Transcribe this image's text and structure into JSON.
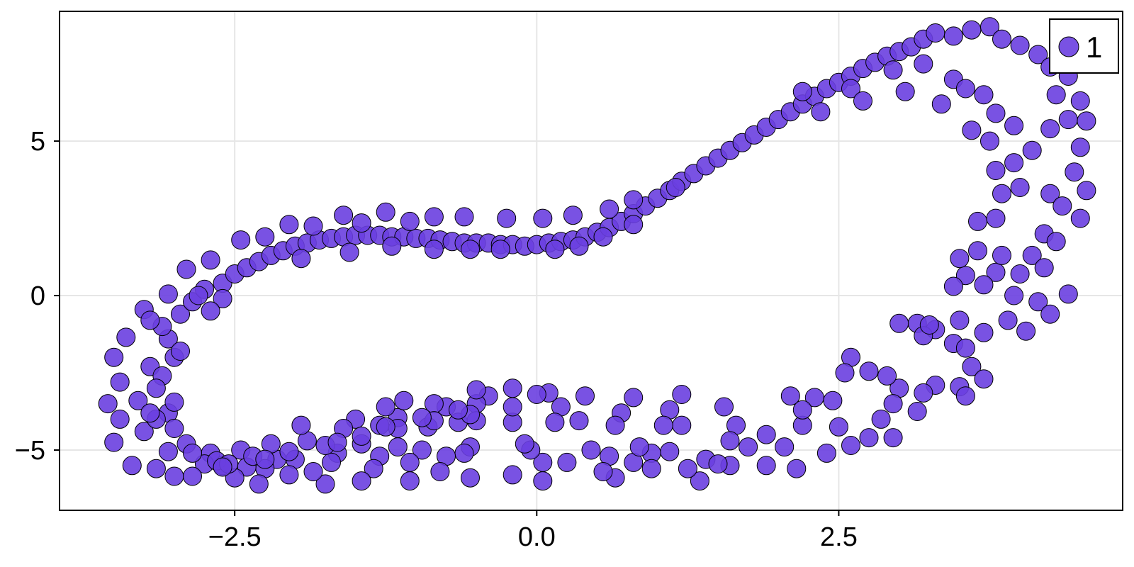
{
  "chart_data": {
    "type": "scatter",
    "title": "",
    "xlabel": "",
    "ylabel": "",
    "xlim": [
      -3.95,
      4.85
    ],
    "ylim": [
      -6.95,
      9.2
    ],
    "x_ticks": [
      -2.5,
      0.0,
      2.5
    ],
    "x_tick_labels": [
      "−2.5",
      "0.0",
      "2.5"
    ],
    "y_ticks": [
      -5,
      0,
      5
    ],
    "y_tick_labels": [
      "−5",
      "0",
      "5"
    ],
    "grid": true,
    "legend_position": "top-right",
    "marker_color": "#6a3fe0",
    "marker_edge_color": "#000000",
    "series": [
      {
        "name": "1",
        "points": [
          [
            -3.55,
            -3.5
          ],
          [
            -3.45,
            -4.0
          ],
          [
            -3.5,
            -4.75
          ],
          [
            -3.35,
            -5.5
          ],
          [
            -3.15,
            -5.6
          ],
          [
            -3.0,
            -5.85
          ],
          [
            -3.4,
            -1.35
          ],
          [
            -3.25,
            -0.45
          ],
          [
            -3.05,
            0.05
          ],
          [
            -2.9,
            0.85
          ],
          [
            -3.5,
            -2.0
          ],
          [
            -3.45,
            -2.8
          ],
          [
            -3.3,
            -3.4
          ],
          [
            -3.2,
            -2.3
          ],
          [
            -3.25,
            -4.4
          ],
          [
            -3.05,
            -3.8
          ],
          [
            -3.1,
            -2.6
          ],
          [
            -3.05,
            -1.4
          ],
          [
            -3.1,
            -1.0
          ],
          [
            -3.0,
            -2.0
          ],
          [
            -2.95,
            -0.6
          ],
          [
            -2.85,
            -0.2
          ],
          [
            -2.75,
            0.2
          ],
          [
            -2.6,
            0.4
          ],
          [
            -2.5,
            0.7
          ],
          [
            -2.4,
            0.9
          ],
          [
            -2.3,
            1.1
          ],
          [
            -2.2,
            1.3
          ],
          [
            -2.1,
            1.45
          ],
          [
            -2.0,
            1.6
          ],
          [
            -1.9,
            1.7
          ],
          [
            -1.8,
            1.8
          ],
          [
            -1.7,
            1.85
          ],
          [
            -1.6,
            1.9
          ],
          [
            -1.5,
            1.95
          ],
          [
            -1.4,
            1.95
          ],
          [
            -1.3,
            1.95
          ],
          [
            -1.2,
            1.9
          ],
          [
            -1.1,
            1.9
          ],
          [
            -1.0,
            1.85
          ],
          [
            -0.9,
            1.85
          ],
          [
            -0.8,
            1.8
          ],
          [
            -0.7,
            1.75
          ],
          [
            -0.6,
            1.7
          ],
          [
            -0.5,
            1.7
          ],
          [
            -0.4,
            1.7
          ],
          [
            -0.3,
            1.65
          ],
          [
            -0.2,
            1.65
          ],
          [
            -0.1,
            1.6
          ],
          [
            0.0,
            1.65
          ],
          [
            0.1,
            1.7
          ],
          [
            0.2,
            1.75
          ],
          [
            0.3,
            1.8
          ],
          [
            0.4,
            1.9
          ],
          [
            0.5,
            2.05
          ],
          [
            0.6,
            2.2
          ],
          [
            0.7,
            2.4
          ],
          [
            0.8,
            2.65
          ],
          [
            0.9,
            2.9
          ],
          [
            1.0,
            3.15
          ],
          [
            1.1,
            3.4
          ],
          [
            1.2,
            3.7
          ],
          [
            1.3,
            3.95
          ],
          [
            1.4,
            4.2
          ],
          [
            1.5,
            4.45
          ],
          [
            1.6,
            4.7
          ],
          [
            1.7,
            4.95
          ],
          [
            1.8,
            5.2
          ],
          [
            1.9,
            5.45
          ],
          [
            2.0,
            5.7
          ],
          [
            2.1,
            5.95
          ],
          [
            2.2,
            6.2
          ],
          [
            2.3,
            6.45
          ],
          [
            2.4,
            6.7
          ],
          [
            2.5,
            6.9
          ],
          [
            2.6,
            7.1
          ],
          [
            2.7,
            7.35
          ],
          [
            2.8,
            7.55
          ],
          [
            2.9,
            7.75
          ],
          [
            3.0,
            7.9
          ],
          [
            3.1,
            8.05
          ],
          [
            3.2,
            8.3
          ],
          [
            3.3,
            8.5
          ],
          [
            3.45,
            8.4
          ],
          [
            3.6,
            8.6
          ],
          [
            3.75,
            8.7
          ],
          [
            3.85,
            8.3
          ],
          [
            4.0,
            8.1
          ],
          [
            4.15,
            7.8
          ],
          [
            4.25,
            7.4
          ],
          [
            -2.45,
            1.8
          ],
          [
            -2.25,
            1.9
          ],
          [
            -2.05,
            2.3
          ],
          [
            -1.85,
            2.25
          ],
          [
            -1.6,
            2.6
          ],
          [
            -1.45,
            2.35
          ],
          [
            -1.25,
            2.7
          ],
          [
            -1.05,
            2.4
          ],
          [
            -0.85,
            2.55
          ],
          [
            -0.6,
            2.55
          ],
          [
            -0.25,
            2.5
          ],
          [
            0.05,
            2.5
          ],
          [
            0.3,
            2.6
          ],
          [
            0.6,
            2.8
          ],
          [
            0.8,
            3.1
          ],
          [
            1.15,
            3.5
          ],
          [
            -2.7,
            1.15
          ],
          [
            -2.6,
            -0.1
          ],
          [
            -2.8,
            0.0
          ],
          [
            -2.7,
            -0.5
          ],
          [
            -1.95,
            1.2
          ],
          [
            -1.55,
            1.4
          ],
          [
            -1.2,
            1.6
          ],
          [
            -0.85,
            1.5
          ],
          [
            -0.55,
            1.5
          ],
          [
            -0.3,
            1.5
          ],
          [
            0.15,
            1.5
          ],
          [
            0.35,
            1.6
          ],
          [
            0.55,
            1.9
          ],
          [
            0.8,
            2.3
          ],
          [
            2.2,
            6.6
          ],
          [
            2.35,
            5.95
          ],
          [
            2.6,
            6.7
          ],
          [
            2.7,
            6.3
          ],
          [
            2.95,
            7.3
          ],
          [
            3.05,
            6.6
          ],
          [
            3.2,
            7.5
          ],
          [
            3.35,
            6.2
          ],
          [
            3.45,
            7.0
          ],
          [
            3.55,
            6.7
          ],
          [
            3.7,
            6.5
          ],
          [
            3.8,
            5.9
          ],
          [
            3.6,
            5.35
          ],
          [
            3.75,
            5.0
          ],
          [
            3.95,
            5.5
          ],
          [
            4.1,
            4.7
          ],
          [
            4.25,
            5.4
          ],
          [
            4.4,
            5.7
          ],
          [
            4.5,
            4.8
          ],
          [
            4.55,
            5.65
          ],
          [
            4.5,
            6.3
          ],
          [
            4.4,
            7.1
          ],
          [
            4.3,
            6.5
          ],
          [
            3.95,
            4.3
          ],
          [
            3.8,
            4.05
          ],
          [
            3.85,
            3.3
          ],
          [
            3.65,
            2.4
          ],
          [
            3.8,
            2.5
          ],
          [
            4.0,
            3.5
          ],
          [
            4.25,
            3.3
          ],
          [
            4.35,
            2.9
          ],
          [
            4.5,
            2.5
          ],
          [
            4.55,
            3.4
          ],
          [
            4.45,
            4.0
          ],
          [
            4.2,
            2.0
          ],
          [
            4.1,
            1.3
          ],
          [
            4.3,
            1.75
          ],
          [
            4.2,
            0.9
          ],
          [
            4.0,
            0.7
          ],
          [
            3.8,
            0.75
          ],
          [
            3.55,
            0.65
          ],
          [
            3.45,
            0.3
          ],
          [
            3.7,
            0.35
          ],
          [
            3.95,
            0.0
          ],
          [
            4.15,
            -0.2
          ],
          [
            4.25,
            -0.6
          ],
          [
            4.4,
            0.05
          ],
          [
            3.85,
            1.3
          ],
          [
            3.5,
            1.2
          ],
          [
            3.65,
            1.45
          ],
          [
            4.05,
            -1.15
          ],
          [
            3.9,
            -0.8
          ],
          [
            3.7,
            -1.2
          ],
          [
            3.5,
            -0.8
          ],
          [
            3.3,
            -1.1
          ],
          [
            3.15,
            -0.9
          ],
          [
            3.0,
            -0.9
          ],
          [
            3.2,
            -1.3
          ],
          [
            3.45,
            -1.55
          ],
          [
            3.6,
            -2.3
          ],
          [
            3.7,
            -2.7
          ],
          [
            3.5,
            -2.95
          ],
          [
            3.55,
            -3.25
          ],
          [
            3.3,
            -2.9
          ],
          [
            3.2,
            -3.15
          ],
          [
            3.15,
            -3.75
          ],
          [
            3.0,
            -3.0
          ],
          [
            2.9,
            -2.6
          ],
          [
            2.95,
            -3.5
          ],
          [
            2.75,
            -2.45
          ],
          [
            2.85,
            -4.0
          ],
          [
            2.75,
            -4.6
          ],
          [
            2.95,
            -4.6
          ],
          [
            2.6,
            -4.85
          ],
          [
            2.5,
            -4.25
          ],
          [
            2.6,
            -2.0
          ],
          [
            2.55,
            -2.5
          ],
          [
            2.3,
            -3.3
          ],
          [
            2.1,
            -3.25
          ],
          [
            2.2,
            -4.2
          ],
          [
            2.05,
            -4.9
          ],
          [
            1.9,
            -5.5
          ],
          [
            1.75,
            -4.9
          ],
          [
            1.65,
            -4.2
          ],
          [
            1.55,
            -3.6
          ],
          [
            1.6,
            -4.7
          ],
          [
            1.6,
            -5.5
          ],
          [
            1.4,
            -5.3
          ],
          [
            1.35,
            -6.0
          ],
          [
            1.25,
            -5.6
          ],
          [
            1.2,
            -4.2
          ],
          [
            1.2,
            -3.2
          ],
          [
            1.1,
            -3.7
          ],
          [
            1.05,
            -4.2
          ],
          [
            1.1,
            -5.05
          ],
          [
            0.95,
            -5.1
          ],
          [
            0.95,
            -5.6
          ],
          [
            0.8,
            -5.4
          ],
          [
            0.8,
            -3.3
          ],
          [
            0.7,
            -3.8
          ],
          [
            0.65,
            -4.2
          ],
          [
            0.6,
            -5.2
          ],
          [
            0.65,
            -5.9
          ],
          [
            0.55,
            -5.7
          ],
          [
            0.45,
            -5.0
          ],
          [
            0.35,
            -4.05
          ],
          [
            0.4,
            -3.25
          ],
          [
            0.2,
            -3.6
          ],
          [
            0.15,
            -4.1
          ],
          [
            0.1,
            -3.15
          ],
          [
            0.0,
            -3.2
          ],
          [
            0.05,
            -5.4
          ],
          [
            0.05,
            -6.0
          ],
          [
            -0.05,
            -5.0
          ],
          [
            -0.1,
            -4.8
          ],
          [
            -0.2,
            -5.8
          ],
          [
            -0.2,
            -4.1
          ],
          [
            -0.2,
            -3.6
          ],
          [
            -0.2,
            -3.0
          ],
          [
            -0.4,
            -3.25
          ],
          [
            -0.5,
            -3.5
          ],
          [
            -0.5,
            -3.05
          ],
          [
            -0.5,
            -4.05
          ],
          [
            -0.55,
            -4.9
          ],
          [
            -0.6,
            -5.1
          ],
          [
            -0.55,
            -5.9
          ],
          [
            -0.65,
            -4.1
          ],
          [
            -0.75,
            -3.6
          ],
          [
            -0.75,
            -5.2
          ],
          [
            -0.8,
            -5.7
          ],
          [
            -0.85,
            -3.5
          ],
          [
            -0.9,
            -4.25
          ],
          [
            -0.95,
            -5.0
          ],
          [
            -1.05,
            -5.4
          ],
          [
            -1.05,
            -6.0
          ],
          [
            -1.15,
            -4.9
          ],
          [
            -1.15,
            -3.95
          ],
          [
            -1.1,
            -3.4
          ],
          [
            -1.25,
            -3.6
          ],
          [
            -1.3,
            -4.2
          ],
          [
            -1.3,
            -5.2
          ],
          [
            -1.35,
            -5.6
          ],
          [
            -1.45,
            -4.8
          ],
          [
            -1.5,
            -4.0
          ],
          [
            -1.6,
            -4.3
          ],
          [
            -1.65,
            -5.1
          ],
          [
            -1.7,
            -5.4
          ],
          [
            -1.75,
            -6.1
          ],
          [
            -1.85,
            -5.7
          ],
          [
            -1.9,
            -4.7
          ],
          [
            -1.95,
            -4.2
          ],
          [
            -2.0,
            -5.3
          ],
          [
            -2.05,
            -5.8
          ],
          [
            -2.15,
            -5.3
          ],
          [
            -2.2,
            -4.8
          ],
          [
            -2.25,
            -5.6
          ],
          [
            -2.3,
            -6.1
          ],
          [
            -2.4,
            -5.55
          ],
          [
            -2.45,
            -5.0
          ],
          [
            -2.5,
            -5.9
          ],
          [
            -2.6,
            -5.5
          ],
          [
            -2.7,
            -5.1
          ],
          [
            -2.75,
            -5.45
          ],
          [
            -2.85,
            -5.85
          ],
          [
            -2.9,
            -4.8
          ],
          [
            -3.0,
            -4.3
          ],
          [
            -3.05,
            -5.05
          ],
          [
            -3.15,
            -4.0
          ],
          [
            -3.15,
            -3.0
          ],
          [
            -3.0,
            -3.45
          ],
          [
            -2.65,
            -5.35
          ],
          [
            -2.35,
            -5.2
          ],
          [
            -2.05,
            -5.05
          ],
          [
            -1.75,
            -4.85
          ],
          [
            -1.45,
            -4.55
          ],
          [
            -1.15,
            -4.3
          ],
          [
            -0.85,
            -4.05
          ],
          [
            -0.55,
            -3.85
          ],
          [
            -2.55,
            -5.45
          ],
          [
            -2.25,
            -5.3
          ],
          [
            -1.65,
            -4.75
          ],
          [
            -1.25,
            -4.25
          ],
          [
            -0.95,
            -3.95
          ],
          [
            -0.65,
            -3.7
          ],
          [
            3.25,
            -0.95
          ],
          [
            3.55,
            -1.7
          ],
          [
            2.45,
            -3.4
          ],
          [
            2.2,
            -3.7
          ],
          [
            1.9,
            -4.5
          ],
          [
            2.4,
            -5.1
          ],
          [
            -3.2,
            -0.8
          ],
          [
            -2.95,
            -1.8
          ],
          [
            -3.2,
            -3.8
          ],
          [
            -2.85,
            -5.1
          ],
          [
            -2.6,
            -5.55
          ],
          [
            -1.45,
            -6.0
          ],
          [
            0.25,
            -5.4
          ],
          [
            0.85,
            -4.9
          ],
          [
            1.5,
            -5.45
          ],
          [
            2.15,
            -5.6
          ]
        ]
      }
    ]
  }
}
